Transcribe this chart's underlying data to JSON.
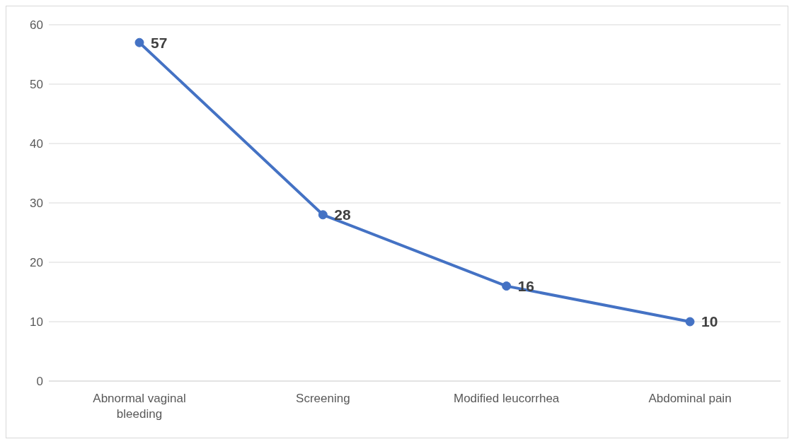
{
  "chart_data": {
    "type": "line",
    "categories": [
      "Abnormal vaginal bleeding",
      "Screening",
      "Modified leucorrhea",
      "Abdominal pain"
    ],
    "series": [
      {
        "color": "#4472c4",
        "values": [
          57,
          28,
          16,
          10
        ]
      }
    ],
    "ylim": [
      0,
      60
    ],
    "yticks": [
      0,
      10,
      20,
      30,
      40,
      50,
      60
    ],
    "grid": "y",
    "data_labels": true,
    "marker": "circle",
    "line_style": "solid",
    "legend": false
  }
}
